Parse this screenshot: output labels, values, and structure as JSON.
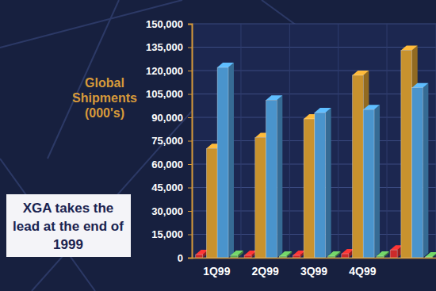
{
  "chart_data": {
    "type": "bar",
    "y_label": "Global Shipments (000's)",
    "annotation": "XGA takes the lead at the end of 1999",
    "categories": [
      "1Q99",
      "2Q99",
      "3Q99",
      "4Q99",
      null
    ],
    "series": [
      {
        "color": "#cc2a2a",
        "values": [
          2000,
          1500,
          1500,
          2500,
          5000
        ]
      },
      {
        "color": "#c8922e",
        "values": [
          70000,
          77000,
          89000,
          117000,
          133000
        ]
      },
      {
        "color": "#4a94cc",
        "values": [
          122000,
          101000,
          93000,
          95000,
          109000
        ]
      },
      {
        "color": "#5aa852",
        "values": [
          1500,
          1000,
          1000,
          1000,
          500
        ]
      }
    ],
    "ylim": [
      0,
      150000
    ],
    "yticks": [
      0,
      {
        "value": 15000,
        "label": "15,000"
      },
      {
        "value": 30000,
        "label": "30,000"
      },
      {
        "value": 45000,
        "label": "45,000"
      },
      {
        "value": 60000,
        "label": "60,000"
      },
      {
        "value": 75000,
        "label": "75,000"
      },
      {
        "value": 90000,
        "label": "90,000"
      },
      {
        "value": 105000,
        "label": "105,000"
      },
      {
        "value": 120000,
        "label": "120,000"
      },
      {
        "value": 135000,
        "label": "135,000"
      },
      {
        "value": 150000,
        "label": "150,000"
      }
    ],
    "grid": true
  }
}
